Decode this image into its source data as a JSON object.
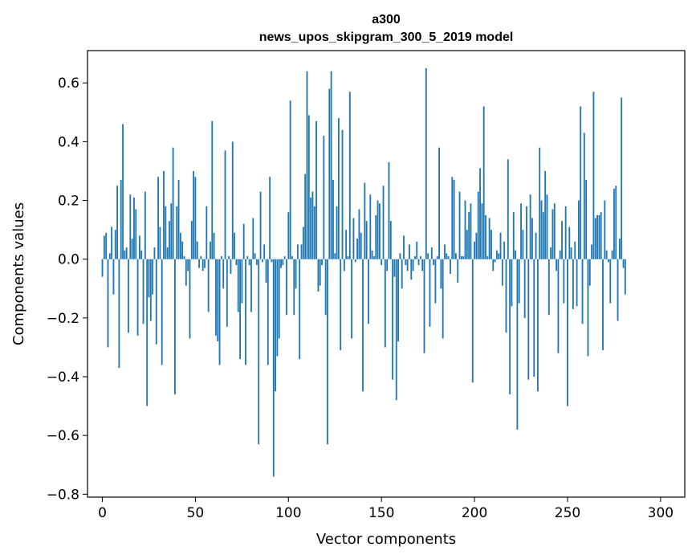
{
  "chart_data": {
    "type": "bar",
    "title": "a300",
    "subtitle": "news_upos_skipgram_300_5_2019 model",
    "xlabel": "Vector components",
    "ylabel": "Components values",
    "xlim": [
      -8,
      313
    ],
    "ylim": [
      -0.81,
      0.71
    ],
    "xticks": [
      0,
      50,
      100,
      150,
      200,
      250,
      300
    ],
    "yticks": [
      -0.8,
      -0.6,
      -0.4,
      -0.2,
      0.0,
      0.2,
      0.4,
      0.6
    ],
    "xtick_labels": [
      "0",
      "50",
      "100",
      "150",
      "200",
      "250",
      "300"
    ],
    "ytick_labels": [
      "−0.8",
      "−0.6",
      "−0.4",
      "−0.2",
      "0.0",
      "0.2",
      "0.4",
      "0.6"
    ],
    "bar_color": "#1f77b4",
    "grid": false,
    "values": [
      -0.06,
      0.08,
      0.09,
      -0.3,
      0.02,
      0.11,
      -0.12,
      0.1,
      0.25,
      -0.37,
      0.27,
      0.46,
      0.03,
      0.04,
      -0.25,
      0.22,
      0.07,
      0.21,
      0.17,
      -0.26,
      0.08,
      0.03,
      -0.22,
      0.23,
      -0.5,
      -0.13,
      -0.21,
      -0.12,
      0.04,
      -0.29,
      0.28,
      0.11,
      -0.36,
      0.3,
      0.18,
      0.04,
      0.13,
      0.19,
      0.38,
      -0.46,
      0.18,
      0.27,
      0.09,
      0.06,
      0.01,
      -0.09,
      -0.04,
      -0.27,
      0.13,
      0.3,
      0.28,
      0.06,
      -0.03,
      0.01,
      -0.04,
      -0.03,
      0.18,
      -0.18,
      0.06,
      0.47,
      0.09,
      -0.26,
      -0.28,
      -0.36,
      0.01,
      -0.1,
      0.37,
      -0.23,
      0.01,
      -0.05,
      0.4,
      0.09,
      -0.02,
      -0.18,
      -0.34,
      -0.15,
      0.12,
      -0.36,
      0.01,
      -0.02,
      -0.18,
      0.14,
      0.02,
      -0.02,
      -0.63,
      0.23,
      -0.01,
      0.05,
      -0.08,
      -0.36,
      0.28,
      -0.01,
      -0.74,
      -0.45,
      -0.33,
      -0.27,
      -0.03,
      -0.02,
      0.01,
      -0.19,
      0.16,
      0.54,
      0.01,
      -0.19,
      -0.1,
      0.05,
      -0.34,
      0.05,
      0.11,
      0.29,
      0.64,
      0.49,
      0.21,
      0.23,
      0.18,
      0.47,
      -0.11,
      -0.09,
      -0.02,
      0.42,
      -0.19,
      -0.63,
      0.58,
      0.64,
      0.27,
      0.02,
      0.18,
      0.48,
      -0.31,
      0.44,
      -0.04,
      0.1,
      0.01,
      0.57,
      -0.27,
      0.14,
      -0.01,
      0.07,
      0.17,
      0.09,
      -0.45,
      0.26,
      0.13,
      -0.22,
      0.22,
      0.03,
      0.01,
      0.15,
      0.2,
      0.19,
      -0.02,
      0.25,
      -0.3,
      -0.04,
      0.33,
      0.13,
      -0.41,
      -0.06,
      -0.48,
      -0.28,
      0.02,
      -0.1,
      0.08,
      -0.02,
      -0.04,
      0.05,
      -0.07,
      -0.04,
      0.01,
      0.06,
      -0.02,
      0.01,
      -0.04,
      -0.32,
      0.65,
      0.02,
      -0.23,
      0.04,
      -0.02,
      -0.15,
      0.01,
      0.38,
      -0.1,
      -0.27,
      0.05,
      0.02,
      0.01,
      -0.05,
      0.28,
      0.27,
      0.02,
      -0.08,
      0.23,
      0.01,
      0.01,
      0.2,
      0.1,
      0.16,
      0.19,
      -0.42,
      0.06,
      0.09,
      0.23,
      0.31,
      0.19,
      0.52,
      0.15,
      0.01,
      0.14,
      0.1,
      -0.04,
      -0.01,
      0.03,
      0.02,
      0.09,
      -0.09,
      0.06,
      -0.25,
      0.34,
      -0.46,
      -0.16,
      0.16,
      0.03,
      -0.58,
      -0.15,
      0.19,
      0.1,
      -0.2,
      0.18,
      -0.41,
      0.22,
      0.14,
      -0.4,
      0.09,
      -0.45,
      0.38,
      0.2,
      0.16,
      0.3,
      0.22,
      -0.19,
      0.04,
      0.17,
      0.19,
      -0.04,
      -0.32,
      0.03,
      0.13,
      -0.15,
      0.18,
      -0.5,
      0.11,
      0.04,
      -0.17,
      0.06,
      -0.16,
      0.2,
      0.52,
      -0.22,
      0.43,
      0.27,
      -0.33,
      -0.09,
      0.05,
      0.57,
      0.14,
      0.15,
      0.15,
      0.16,
      -0.31,
      0.2,
      0.03,
      -0.01,
      -0.15,
      0.03,
      0.24,
      0.25,
      -0.21,
      0.07,
      0.55,
      -0.03,
      -0.12
    ]
  }
}
